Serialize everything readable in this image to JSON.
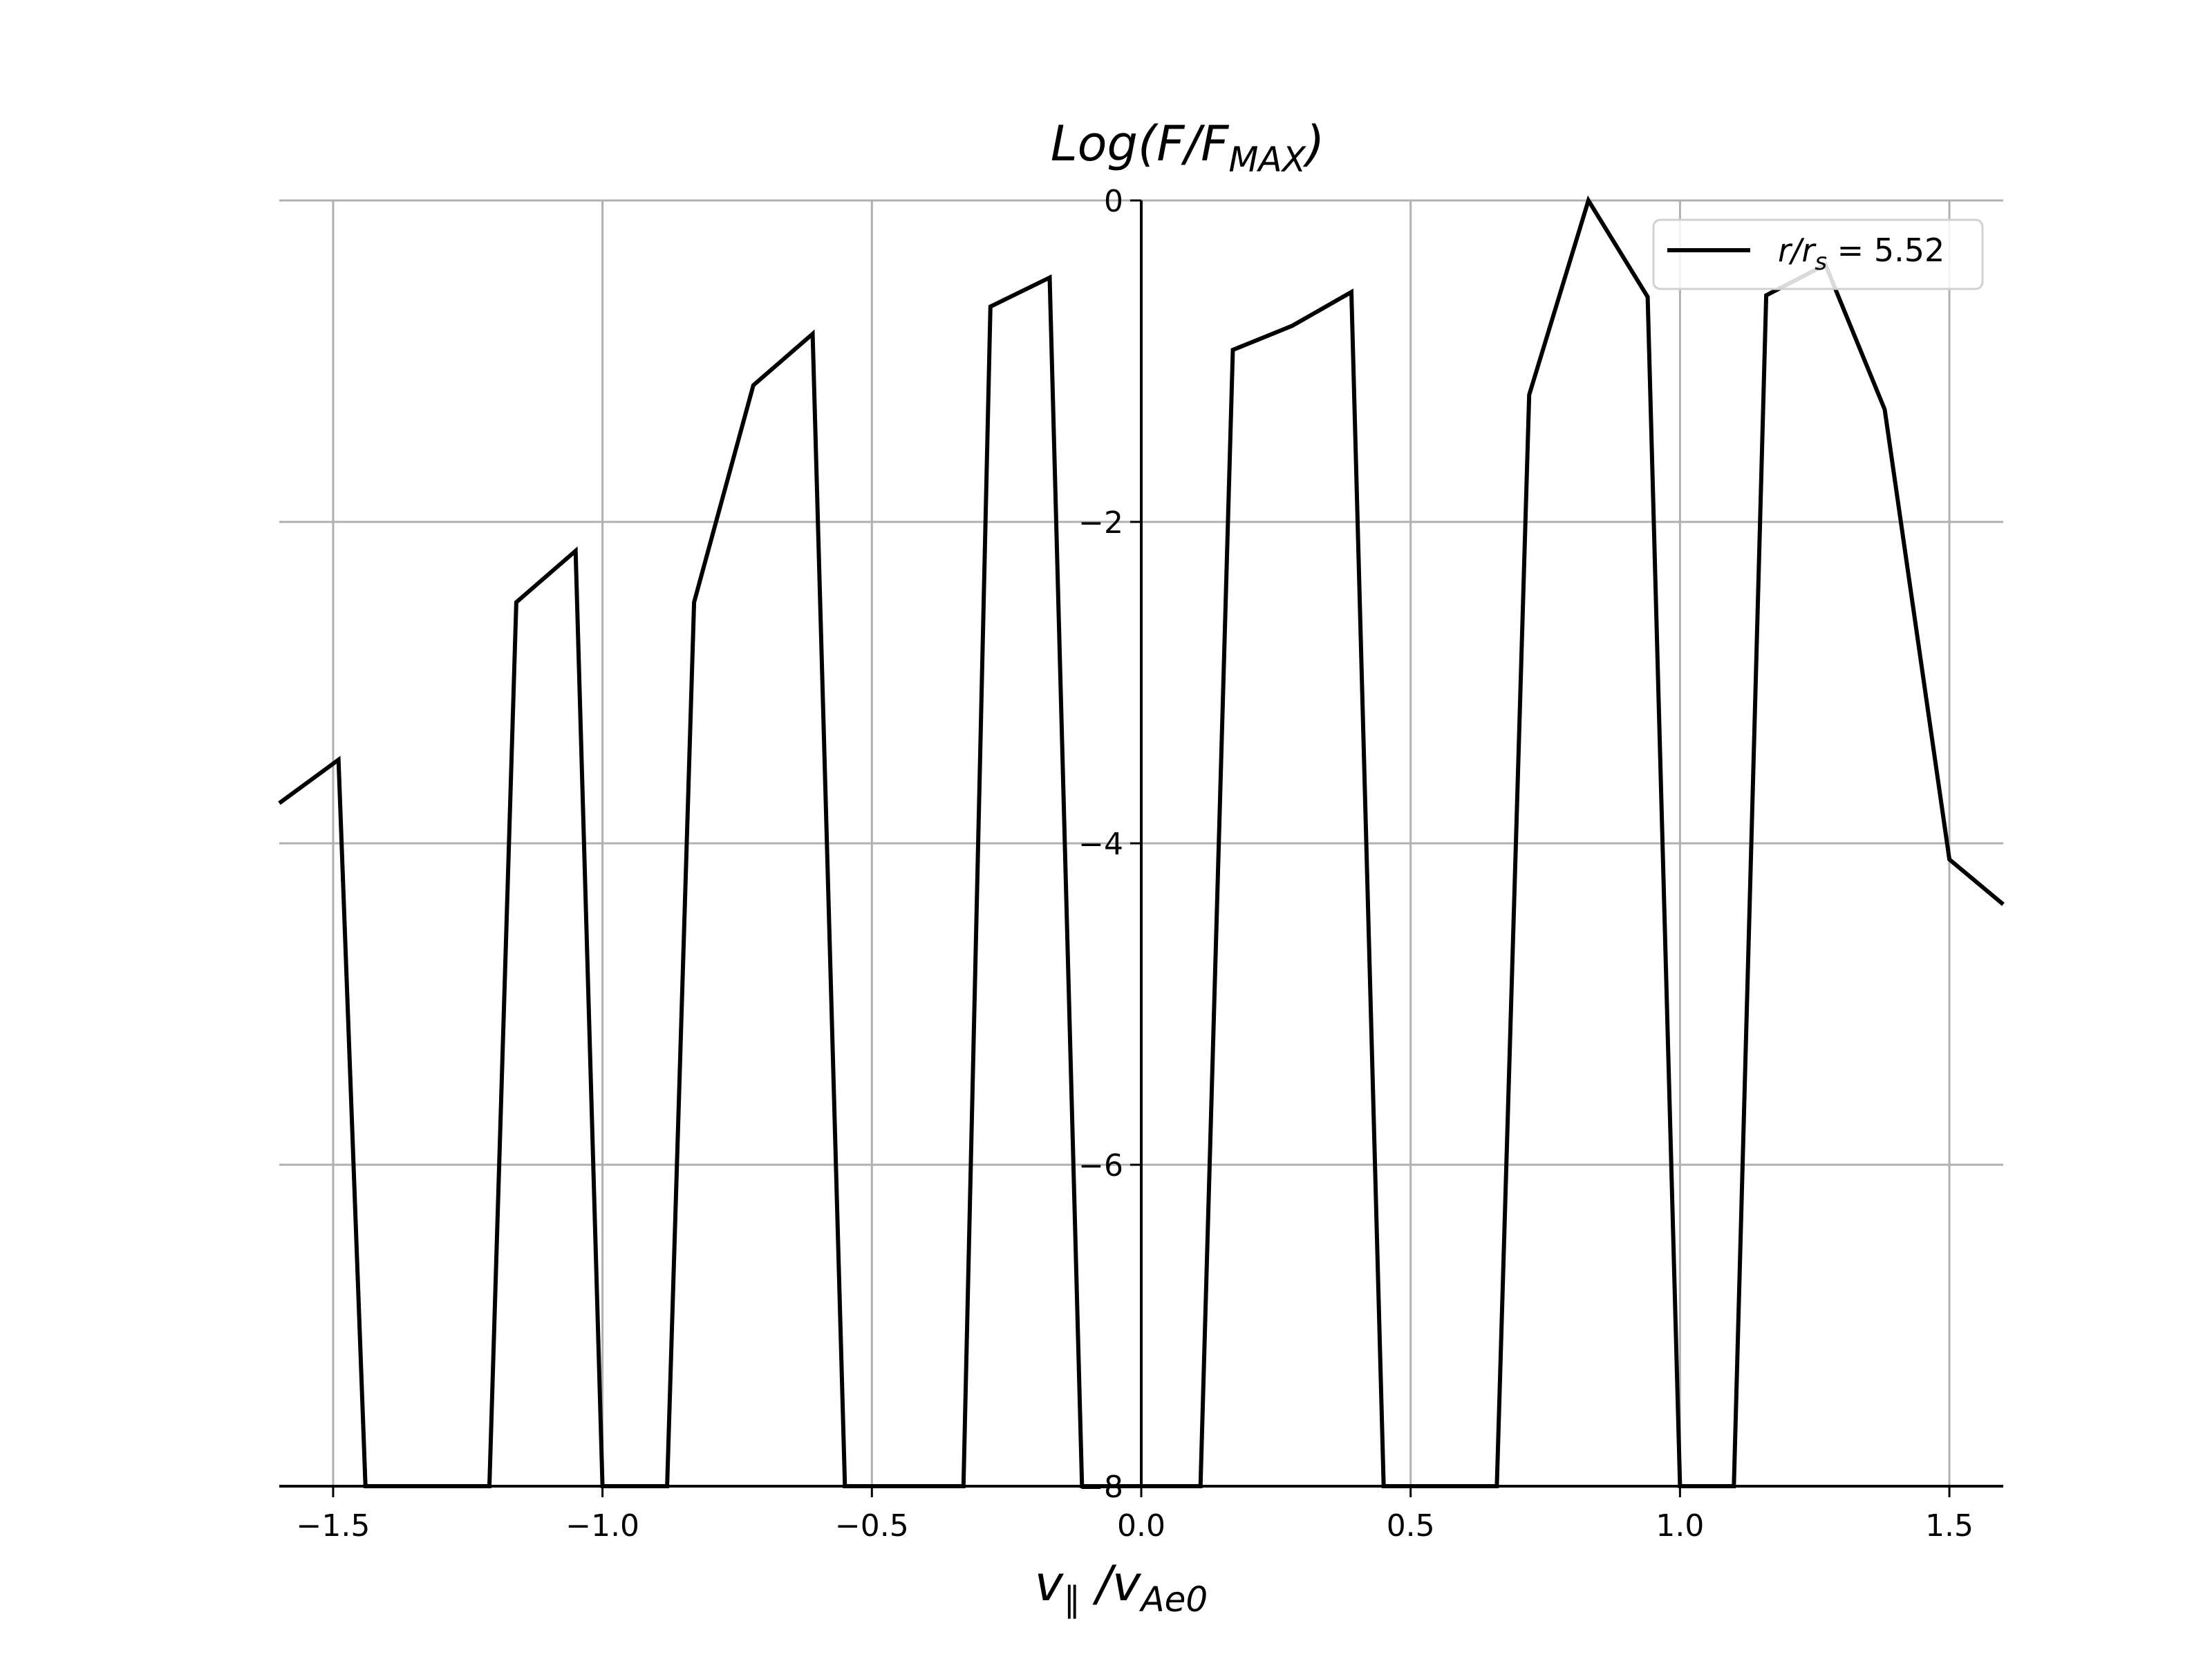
{
  "chart_data": {
    "type": "line",
    "title": "Log(F/F_MAX)",
    "title_parts": {
      "main": "Log(F/F",
      "sub": "MAX",
      "end": ")"
    },
    "xlabel": "v_∥ / v_Ae0",
    "xlabel_parts": {
      "main": "v",
      "sub1": "∥",
      "sep": " /v",
      "sub2": "Ae0"
    },
    "ylabel": "",
    "xlim": [
      -1.6,
      1.6
    ],
    "ylim": [
      -8,
      0
    ],
    "x_ticks": [
      -1.5,
      -1.0,
      -0.5,
      0.0,
      0.5,
      1.0,
      1.5
    ],
    "x_tick_labels": [
      "−1.5",
      "−1.0",
      "−0.5",
      "0.0",
      "0.5",
      "1.0",
      "1.5"
    ],
    "y_ticks": [
      0,
      -2,
      -4,
      -6,
      -8
    ],
    "y_tick_labels": [
      "0",
      "−2",
      "−4",
      "−6",
      "−8"
    ],
    "grid": true,
    "spines": "centered at origin (left spine at x=0)",
    "legend": {
      "position": "top-right"
    },
    "series": [
      {
        "name": "r/r_s = 5.52",
        "name_parts": {
          "main": "r/r",
          "sub": "s",
          "end": " = 5.52"
        },
        "color": "#000000",
        "points": [
          [
            -1.6,
            -3.75
          ],
          [
            -1.49,
            -3.48
          ],
          [
            -1.44,
            -8.0
          ],
          [
            -1.21,
            -8.0
          ],
          [
            -1.16,
            -2.5
          ],
          [
            -1.05,
            -2.18
          ],
          [
            -1.0,
            -8.0
          ],
          [
            -0.88,
            -8.0
          ],
          [
            -0.83,
            -2.5
          ],
          [
            -0.72,
            -1.15
          ],
          [
            -0.61,
            -0.83
          ],
          [
            -0.55,
            -8.0
          ],
          [
            -0.33,
            -8.0
          ],
          [
            -0.28,
            -0.66
          ],
          [
            -0.17,
            -0.48
          ],
          [
            -0.11,
            -8.0
          ],
          [
            0.11,
            -8.0
          ],
          [
            0.17,
            -0.93
          ],
          [
            0.28,
            -0.78
          ],
          [
            0.39,
            -0.57
          ],
          [
            0.45,
            -8.0
          ],
          [
            0.66,
            -8.0
          ],
          [
            0.72,
            -1.21
          ],
          [
            0.83,
            0.0
          ],
          [
            0.94,
            -0.6
          ],
          [
            1.0,
            -8.0
          ],
          [
            1.1,
            -8.0
          ],
          [
            1.16,
            -0.59
          ],
          [
            1.27,
            -0.4
          ],
          [
            1.38,
            -1.3
          ],
          [
            1.5,
            -4.1
          ],
          [
            1.6,
            -4.38
          ]
        ]
      }
    ]
  }
}
